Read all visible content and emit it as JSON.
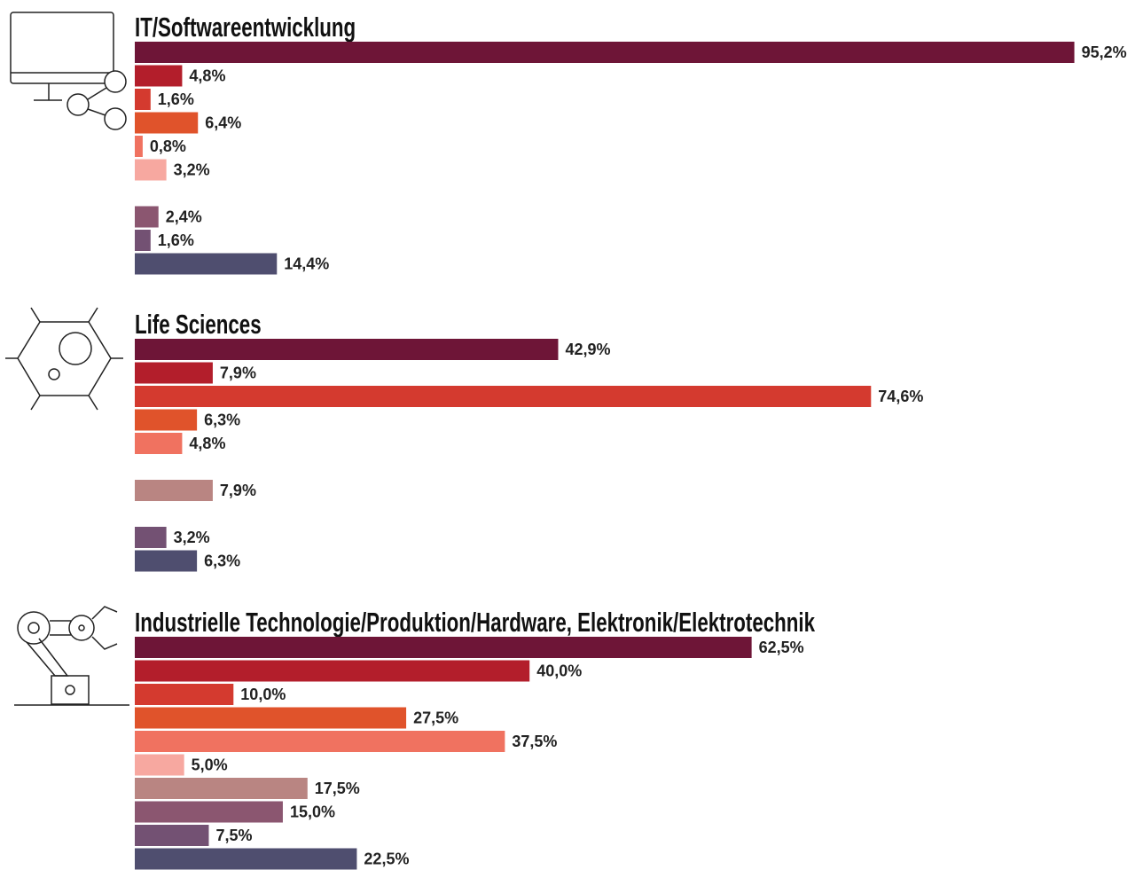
{
  "chart_data": [
    {
      "type": "bar",
      "title": "IT/Softwareentwicklung",
      "values": [
        95.2,
        4.8,
        1.6,
        6.4,
        0.8,
        3.2,
        null,
        2.4,
        1.6,
        14.4
      ],
      "value_labels": [
        "95,2%",
        "4,8%",
        "1,6%",
        "6,4%",
        "0,8%",
        "3,2%",
        null,
        "2,4%",
        "1,6%",
        "14,4%"
      ],
      "colors": [
        "#6e1537",
        "#b31e2b",
        "#d43a2f",
        "#e0532b",
        "#f07260",
        "#f7a8a0",
        "#b98582",
        "#8b5670",
        "#735173",
        "#4f4e6f"
      ],
      "xlim": [
        0,
        100
      ]
    },
    {
      "type": "bar",
      "title": "Life Sciences",
      "values": [
        42.9,
        7.9,
        74.6,
        6.3,
        4.8,
        null,
        7.9,
        null,
        3.2,
        6.3
      ],
      "value_labels": [
        "42,9%",
        "7,9%",
        "74,6%",
        "6,3%",
        "4,8%",
        null,
        "7,9%",
        null,
        "3,2%",
        "6,3%"
      ],
      "colors": [
        "#6e1537",
        "#b31e2b",
        "#d43a2f",
        "#e0532b",
        "#f07260",
        "#f7a8a0",
        "#b98582",
        "#8b5670",
        "#735173",
        "#4f4e6f"
      ],
      "xlim": [
        0,
        100
      ]
    },
    {
      "type": "bar",
      "title": "Industrielle Technologie/Produktion/Hardware, Elektronik/Elektrotechnik",
      "values": [
        62.5,
        40.0,
        10.0,
        27.5,
        37.5,
        5.0,
        17.5,
        15.0,
        7.5,
        22.5
      ],
      "value_labels": [
        "62,5%",
        "40,0%",
        "10,0%",
        "27,5%",
        "37,5%",
        "5,0%",
        "17,5%",
        "15,0%",
        "7,5%",
        "22,5%"
      ],
      "colors": [
        "#6e1537",
        "#b31e2b",
        "#d43a2f",
        "#e0532b",
        "#f07260",
        "#f7a8a0",
        "#b98582",
        "#8b5670",
        "#735173",
        "#4f4e6f"
      ],
      "xlim": [
        0,
        100
      ]
    }
  ]
}
